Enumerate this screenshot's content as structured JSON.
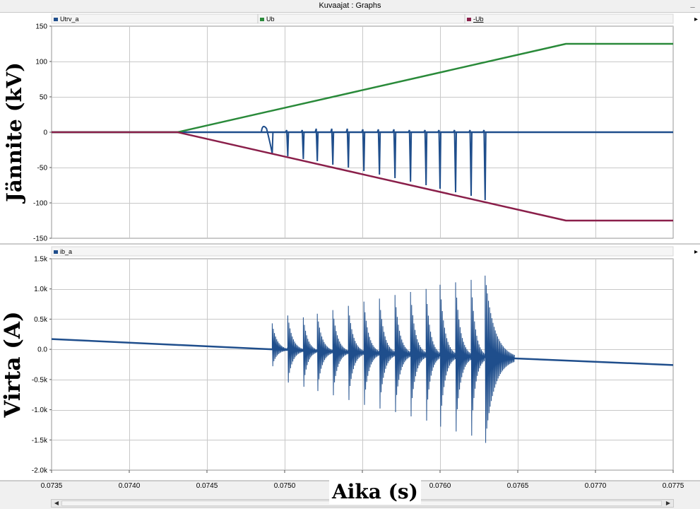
{
  "window": {
    "title": "Kuvaajat : Graphs",
    "minimize_label": "_"
  },
  "chart_data": [
    {
      "type": "line",
      "ylabel": "Jännite (kV)",
      "ylim": [
        -150,
        150
      ],
      "yticks": [
        150,
        100,
        50,
        0,
        -50,
        -100,
        -150
      ],
      "ytick_labels": [
        "150",
        "100",
        "50",
        "0",
        "-50",
        "-100",
        "-150"
      ],
      "xlim": [
        0.0735,
        0.0775
      ],
      "grid": true,
      "legend_position": "top",
      "series": [
        {
          "name": "Utrv_a",
          "color": "#1f4e8c",
          "x": [
            0.0735,
            0.07485,
            0.0775
          ],
          "y": [
            0,
            0,
            0
          ]
        },
        {
          "name": "Ub",
          "color": "#2a8a3a",
          "x": [
            0.0735,
            0.07431,
            0.07681,
            0.0775
          ],
          "y": [
            0,
            0,
            125,
            125
          ]
        },
        {
          "name": "-Ub",
          "color": "#8a1f4a",
          "x": [
            0.0735,
            0.07431,
            0.07681,
            0.0775
          ],
          "y": [
            0,
            0,
            -125,
            -125
          ]
        }
      ],
      "spikes": {
        "series": "Utrv_a",
        "x": [
          0.07492,
          0.07502,
          0.07512,
          0.07521,
          0.07531,
          0.07541,
          0.07551,
          0.07561,
          0.07571,
          0.07581,
          0.07591,
          0.076,
          0.0761,
          0.0762,
          0.07629
        ],
        "min": [
          -30,
          -34,
          -38,
          -41,
          -46,
          -50,
          -55,
          -60,
          -65,
          -70,
          -75,
          -80,
          -85,
          -90,
          -96
        ],
        "max": [
          5,
          3,
          3,
          5,
          5,
          5,
          4,
          4,
          4,
          3,
          3,
          3,
          3,
          3,
          3
        ]
      }
    },
    {
      "type": "line",
      "ylabel": "Virta (A)",
      "xlabel": "Aika (s)",
      "ylim": [
        -2000,
        1500
      ],
      "yticks": [
        1500,
        1000,
        500,
        0,
        -500,
        -1000,
        -1500,
        -2000
      ],
      "ytick_labels": [
        "1.5k",
        "1.0k",
        "0.5k",
        "0.0",
        "-0.5k",
        "-1.0k",
        "-1.5k",
        "-2.0k"
      ],
      "xlim": [
        0.0735,
        0.0775
      ],
      "xticks": [
        0.0735,
        0.074,
        0.0745,
        0.075,
        0.0755,
        0.076,
        0.0765,
        0.077,
        0.0775
      ],
      "xtick_labels": [
        "0.0735",
        "0.0740",
        "0.0745",
        "0.0750",
        "0.0755",
        "0.0760",
        "0.0765",
        "0.0770",
        "0.0775"
      ],
      "grid": true,
      "legend_position": "top-left",
      "series": [
        {
          "name": "ib_a",
          "color": "#1f4e8c",
          "x": [
            0.0735,
            0.07492,
            0.07629,
            0.07648,
            0.0775
          ],
          "y": [
            170,
            0,
            -130,
            -150,
            -260
          ]
        }
      ],
      "bursts": {
        "x": [
          0.07492,
          0.07502,
          0.07512,
          0.07521,
          0.07531,
          0.07541,
          0.07551,
          0.07561,
          0.07571,
          0.07581,
          0.07591,
          0.076,
          0.0761,
          0.0762,
          0.07629
        ],
        "pos": [
          430,
          560,
          530,
          590,
          650,
          720,
          790,
          840,
          900,
          950,
          1000,
          1070,
          1110,
          1150,
          1220
        ],
        "neg": [
          -280,
          -550,
          -620,
          -690,
          -760,
          -840,
          -920,
          -980,
          -1040,
          -1110,
          -1180,
          -1280,
          -1360,
          -1430,
          -1550
        ]
      }
    }
  ]
}
